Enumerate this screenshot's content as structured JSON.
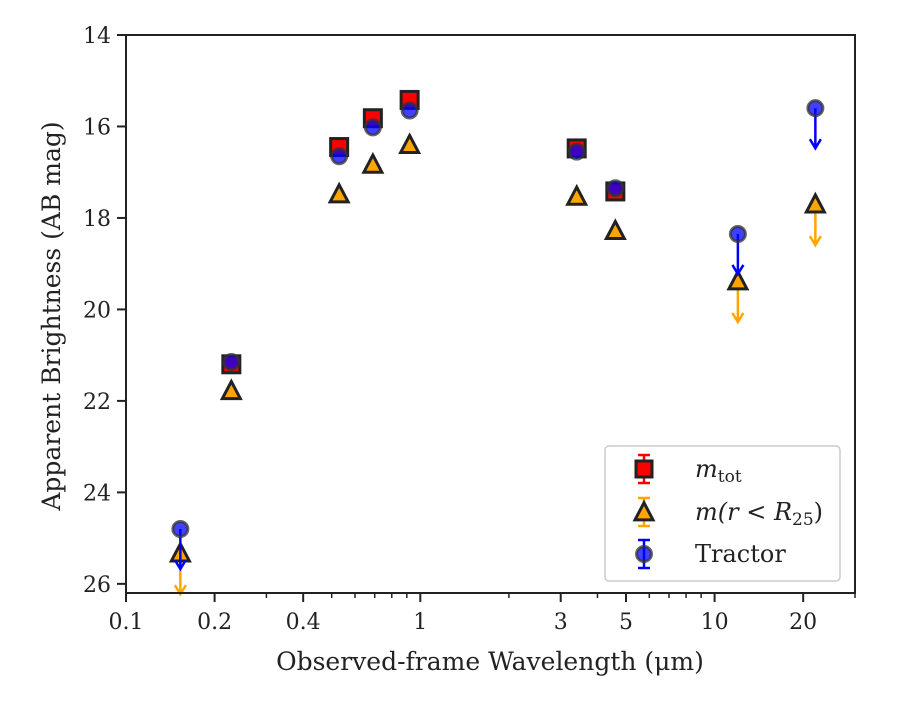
{
  "chart_data": {
    "type": "scatter",
    "title": "",
    "xlabel": "Observed-frame Wavelength (μm)",
    "ylabel": "Apparent Brightness (AB mag)",
    "xscale": "log",
    "xlim": [
      0.1,
      30
    ],
    "ylim": [
      26.2,
      14
    ],
    "y_inverted": true,
    "grid": false,
    "legend_location": "lower-right",
    "x_major_ticks": [
      0.1,
      0.2,
      0.4,
      1,
      3,
      5,
      10,
      20
    ],
    "x_major_tick_labels": [
      "0.1",
      "0.2",
      "0.4",
      "1",
      "3",
      "5",
      "10",
      "20"
    ],
    "y_ticks": [
      14,
      16,
      18,
      20,
      22,
      24,
      26
    ],
    "y_tick_labels": [
      "14",
      "16",
      "18",
      "20",
      "22",
      "24",
      "26"
    ],
    "series": [
      {
        "name": "m_tot",
        "legend_label_main": "m",
        "legend_label_sub": "tot",
        "marker": "square",
        "color": "#ff0000",
        "points": [
          {
            "x": 0.228,
            "y": 21.2
          },
          {
            "x": 0.53,
            "y": 16.45
          },
          {
            "x": 0.69,
            "y": 15.82
          },
          {
            "x": 0.92,
            "y": 15.42
          },
          {
            "x": 3.4,
            "y": 16.48
          },
          {
            "x": 4.6,
            "y": 17.42
          }
        ]
      },
      {
        "name": "m(r < R25)",
        "legend_label_main": "m(r < R",
        "legend_label_sub": "25",
        "legend_label_end": ")",
        "marker": "triangle",
        "color": "#ffa500",
        "points": [
          {
            "x": 0.153,
            "y": 25.35,
            "upper_limit": true
          },
          {
            "x": 0.228,
            "y": 21.8
          },
          {
            "x": 0.53,
            "y": 17.5
          },
          {
            "x": 0.69,
            "y": 16.85
          },
          {
            "x": 0.92,
            "y": 16.42
          },
          {
            "x": 3.4,
            "y": 17.55
          },
          {
            "x": 4.6,
            "y": 18.3
          },
          {
            "x": 12.0,
            "y": 19.4,
            "upper_limit": true
          },
          {
            "x": 22.0,
            "y": 17.72,
            "upper_limit": true
          }
        ]
      },
      {
        "name": "Tractor",
        "marker": "circle",
        "color": "#0000ff",
        "points": [
          {
            "x": 0.153,
            "y": 24.8,
            "upper_limit": true
          },
          {
            "x": 0.228,
            "y": 21.15
          },
          {
            "x": 0.53,
            "y": 16.65
          },
          {
            "x": 0.69,
            "y": 16.02
          },
          {
            "x": 0.92,
            "y": 15.65
          },
          {
            "x": 3.4,
            "y": 16.55
          },
          {
            "x": 4.6,
            "y": 17.35
          },
          {
            "x": 12.0,
            "y": 18.35,
            "upper_limit": true
          },
          {
            "x": 22.0,
            "y": 15.6,
            "upper_limit": true
          }
        ]
      }
    ]
  }
}
